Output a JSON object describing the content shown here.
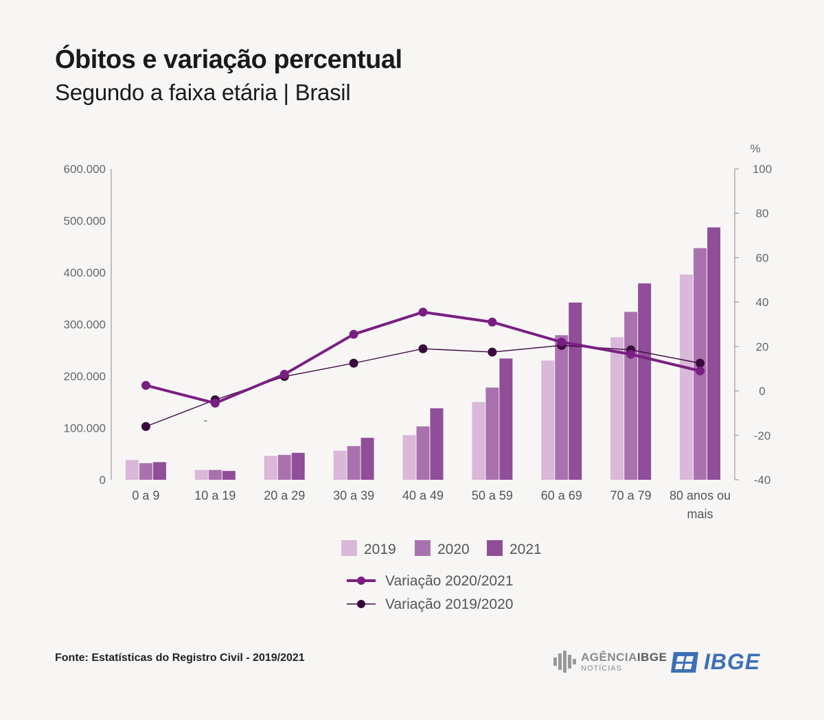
{
  "header": {
    "title": "Óbitos e variação percentual",
    "subtitle": "Segundo a faixa etária | Brasil"
  },
  "chart_data": {
    "type": "bar",
    "categories": [
      "0 a 9",
      "10 a 19",
      "20 a 29",
      "30 a 39",
      "40 a 49",
      "50 a 59",
      "60 a 69",
      "70 a 79",
      "80 anos ou mais"
    ],
    "categories_display": [
      [
        "0 a 9"
      ],
      [
        "10 a 19"
      ],
      [
        "20 a 29"
      ],
      [
        "30 a 39"
      ],
      [
        "40 a 49"
      ],
      [
        "50 a 59"
      ],
      [
        "60 a 69"
      ],
      [
        "70 a 79"
      ],
      [
        "80 anos ou",
        "mais"
      ]
    ],
    "series": [
      {
        "name": "2019",
        "color": "#d9b8d9",
        "values": [
          38000,
          19000,
          46000,
          56000,
          86000,
          150000,
          230000,
          275000,
          396000
        ]
      },
      {
        "name": "2020",
        "color": "#a972ae",
        "values": [
          32000,
          19000,
          48000,
          65000,
          103000,
          178000,
          279000,
          324000,
          447000
        ]
      },
      {
        "name": "2021",
        "color": "#904d98",
        "values": [
          34000,
          17000,
          52000,
          81000,
          138000,
          234000,
          342000,
          379000,
          487000
        ]
      }
    ],
    "lines": [
      {
        "name": "Variação 2020/2021",
        "color": "#7a1f82",
        "axis": "right",
        "values": [
          2.5,
          -5.5,
          7.5,
          25.5,
          35.5,
          31,
          22,
          16.5,
          9
        ]
      },
      {
        "name": "Variação 2019/2020",
        "color": "#3a0a3e",
        "axis": "right",
        "values": [
          -16,
          -4,
          6.5,
          12.5,
          19,
          17.5,
          20.5,
          18.5,
          12.5
        ]
      }
    ],
    "ylim": [
      0,
      600000
    ],
    "yticks": [
      0,
      100000,
      200000,
      300000,
      400000,
      500000,
      600000
    ],
    "ytick_labels": [
      "0",
      "100.000",
      "200.000",
      "300.000",
      "400.000",
      "500.000",
      "600.000"
    ],
    "y2lim": [
      -40,
      100
    ],
    "y2ticks": [
      -40,
      -20,
      0,
      20,
      40,
      60,
      80,
      100
    ],
    "y2tick_labels": [
      "-40",
      "-20",
      "0",
      "20",
      "40",
      "60",
      "80",
      "100"
    ],
    "y2label": "%",
    "annotations": [
      {
        "category": "10 a 19",
        "text": "-"
      }
    ]
  },
  "footer": {
    "source": "Fonte: Estatísticas do Registro Civil - 2019/2021",
    "agencia_line1_a": "AGÊNCIA",
    "agencia_line1_b": "IBGE",
    "agencia_line2": "NOTÍCIAS",
    "ibge_logo": "IBGE"
  },
  "colors": {
    "background": "#f7f6f5",
    "axis": "#888888",
    "ibge_blue": "#3d6fb5"
  }
}
